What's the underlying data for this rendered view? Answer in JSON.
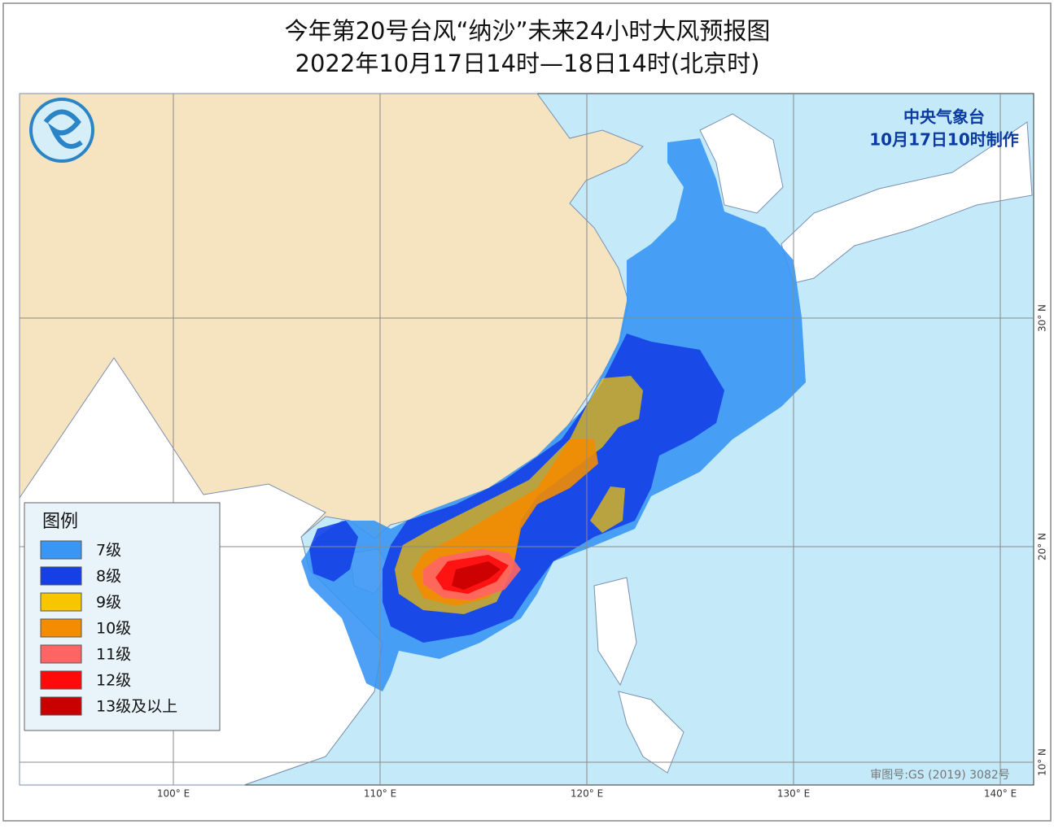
{
  "title": {
    "line1": "今年第20号台风“纳沙”未来24小时大风预报图",
    "line2": "2022年10月17日14时—18日14时(北京时)"
  },
  "agency": {
    "name": "中央气象台",
    "issued": "10月17日10时制作"
  },
  "legend": {
    "title": "图例",
    "items": [
      {
        "label": "7级",
        "color": "#3a96f4"
      },
      {
        "label": "8级",
        "color": "#1440e6"
      },
      {
        "label": "9级",
        "color": "#f7c600"
      },
      {
        "label": "10级",
        "color": "#f48c00"
      },
      {
        "label": "11级",
        "color": "#ff6464"
      },
      {
        "label": "12级",
        "color": "#ff0a0a"
      },
      {
        "label": "13级及以上",
        "color": "#c80000"
      }
    ]
  },
  "longitude_labels": [
    "100° E",
    "110° E",
    "120° E",
    "130° E",
    "140° E"
  ],
  "latitude_labels": [
    "30° N",
    "20° N",
    "10° N"
  ],
  "review_number": "审图号:GS (2019) 3082号"
}
